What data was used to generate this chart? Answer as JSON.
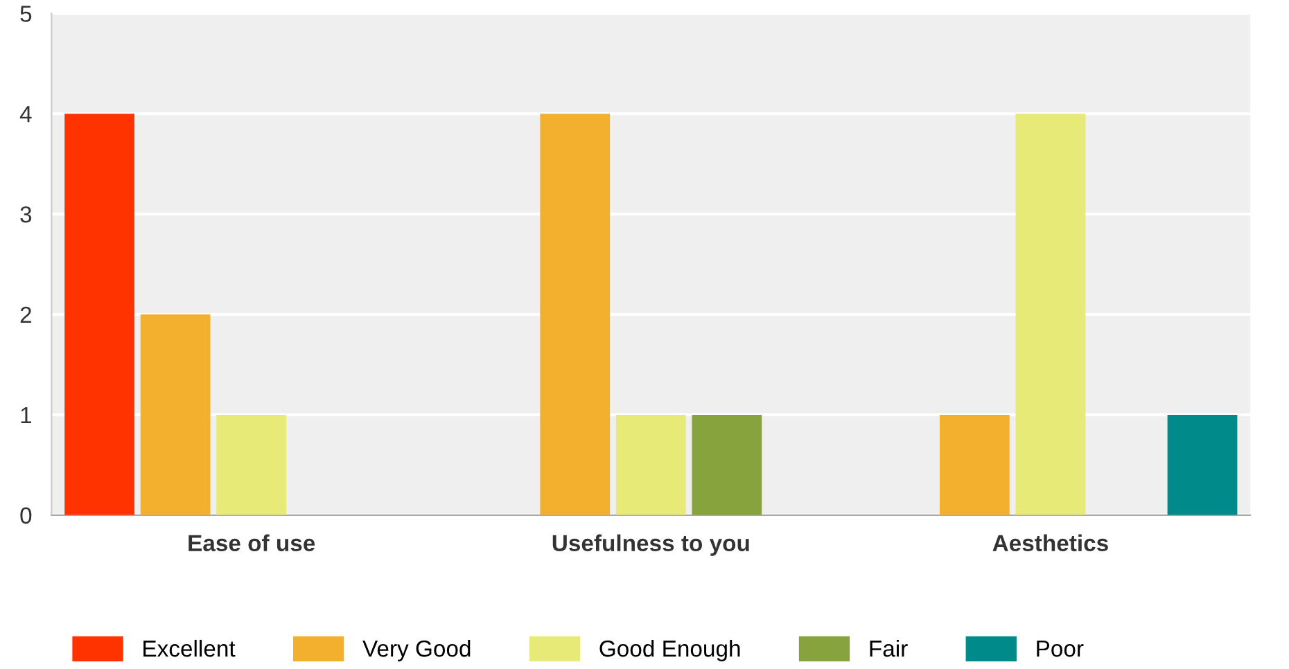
{
  "chart_data": {
    "type": "bar",
    "categories": [
      "Ease of use",
      "Usefulness to you",
      "Aesthetics"
    ],
    "series": [
      {
        "name": "Excellent",
        "color": "#ff3300",
        "values": [
          4,
          0,
          0
        ]
      },
      {
        "name": "Very Good",
        "color": "#f2b02e",
        "values": [
          2,
          4,
          1
        ]
      },
      {
        "name": "Good Enough",
        "color": "#e8ea77",
        "values": [
          1,
          1,
          4
        ]
      },
      {
        "name": "Fair",
        "color": "#86a33d",
        "values": [
          0,
          1,
          0
        ]
      },
      {
        "name": "Poor",
        "color": "#008b8a",
        "values": [
          0,
          0,
          1
        ]
      }
    ],
    "ylim": [
      0,
      5
    ],
    "yticks": [
      0,
      1,
      2,
      3,
      4,
      5
    ],
    "grid": "y",
    "legend": "bottom"
  }
}
